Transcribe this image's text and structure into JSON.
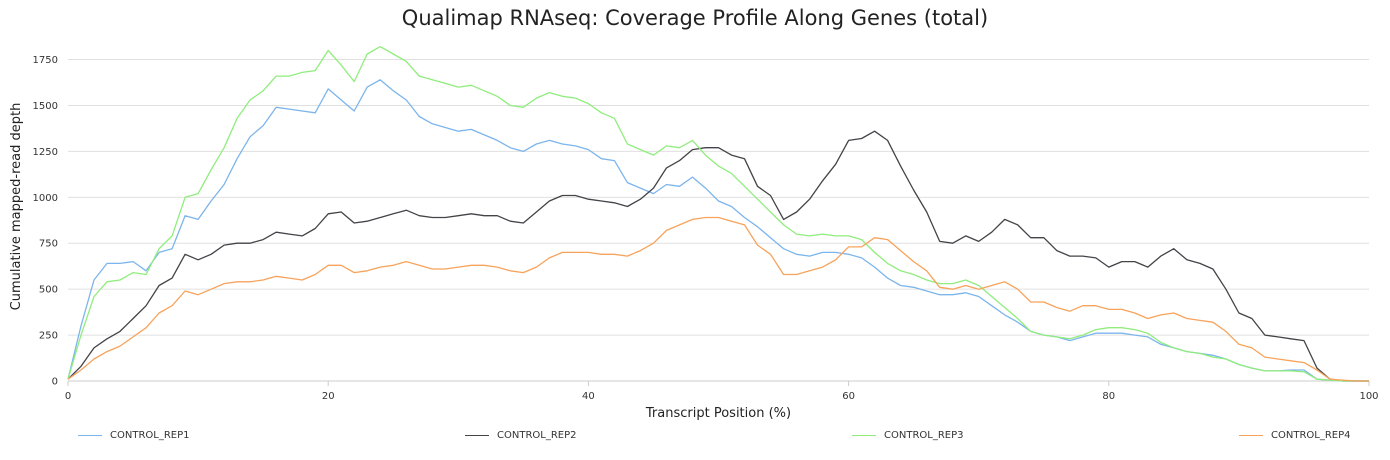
{
  "chart_data": {
    "type": "line",
    "title": "Qualimap RNAseq: Coverage Profile Along Genes (total)",
    "xlabel": "Transcript Position (%)",
    "ylabel": "Cumulative mapped-read depth",
    "xlim": [
      0,
      100
    ],
    "ylim": [
      0,
      1900
    ],
    "xticks": [
      0,
      20,
      40,
      60,
      80,
      100
    ],
    "yticks": [
      0,
      250,
      500,
      750,
      1000,
      1250,
      1500,
      1750
    ],
    "grid": "horizontal",
    "legend_position": "bottom",
    "x": [
      0,
      1,
      2,
      3,
      4,
      5,
      6,
      7,
      8,
      9,
      10,
      11,
      12,
      13,
      14,
      15,
      16,
      17,
      18,
      19,
      20,
      21,
      22,
      23,
      24,
      25,
      26,
      27,
      28,
      29,
      30,
      31,
      32,
      33,
      34,
      35,
      36,
      37,
      38,
      39,
      40,
      41,
      42,
      43,
      44,
      45,
      46,
      47,
      48,
      49,
      50,
      51,
      52,
      53,
      54,
      55,
      56,
      57,
      58,
      59,
      60,
      61,
      62,
      63,
      64,
      65,
      66,
      67,
      68,
      69,
      70,
      71,
      72,
      73,
      74,
      75,
      76,
      77,
      78,
      79,
      80,
      81,
      82,
      83,
      84,
      85,
      86,
      87,
      88,
      89,
      90,
      91,
      92,
      93,
      94,
      95,
      96,
      97,
      98,
      99,
      100
    ],
    "series": [
      {
        "name": "CONTROL_REP1",
        "color": "#7cb5ec",
        "values": [
          10,
          300,
          550,
          640,
          640,
          650,
          600,
          700,
          720,
          900,
          880,
          980,
          1070,
          1210,
          1330,
          1390,
          1490,
          1480,
          1470,
          1460,
          1590,
          1530,
          1470,
          1600,
          1640,
          1580,
          1530,
          1440,
          1400,
          1380,
          1360,
          1370,
          1340,
          1310,
          1270,
          1250,
          1290,
          1310,
          1290,
          1280,
          1260,
          1210,
          1200,
          1080,
          1050,
          1020,
          1070,
          1060,
          1110,
          1050,
          980,
          950,
          890,
          840,
          780,
          720,
          690,
          680,
          700,
          700,
          690,
          670,
          620,
          560,
          520,
          510,
          490,
          470,
          470,
          480,
          460,
          410,
          360,
          320,
          270,
          250,
          240,
          220,
          240,
          260,
          260,
          260,
          250,
          240,
          200,
          180,
          160,
          150,
          140,
          120,
          90,
          70,
          55,
          55,
          60,
          60,
          10,
          5,
          0,
          0,
          0
        ]
      },
      {
        "name": "CONTROL_REP2",
        "color": "#434348",
        "values": [
          10,
          80,
          180,
          230,
          270,
          340,
          410,
          520,
          560,
          690,
          660,
          690,
          740,
          750,
          750,
          770,
          810,
          800,
          790,
          830,
          910,
          920,
          860,
          870,
          890,
          910,
          930,
          900,
          890,
          890,
          900,
          910,
          900,
          900,
          870,
          860,
          920,
          980,
          1010,
          1010,
          990,
          980,
          970,
          950,
          990,
          1050,
          1160,
          1200,
          1260,
          1270,
          1270,
          1230,
          1210,
          1060,
          1010,
          880,
          920,
          990,
          1090,
          1180,
          1310,
          1320,
          1360,
          1310,
          1170,
          1040,
          920,
          760,
          750,
          790,
          760,
          810,
          880,
          850,
          780,
          780,
          710,
          680,
          680,
          670,
          620,
          650,
          650,
          620,
          680,
          720,
          660,
          640,
          610,
          500,
          370,
          340,
          250,
          240,
          230,
          220,
          70,
          10,
          0,
          0,
          0
        ]
      },
      {
        "name": "CONTROL_REP3",
        "color": "#90ed7d",
        "values": [
          10,
          250,
          460,
          540,
          550,
          590,
          580,
          720,
          790,
          1000,
          1020,
          1150,
          1270,
          1430,
          1530,
          1580,
          1660,
          1660,
          1680,
          1690,
          1800,
          1720,
          1630,
          1780,
          1820,
          1780,
          1740,
          1660,
          1640,
          1620,
          1600,
          1610,
          1580,
          1550,
          1500,
          1490,
          1540,
          1570,
          1550,
          1540,
          1510,
          1460,
          1430,
          1290,
          1260,
          1230,
          1280,
          1270,
          1310,
          1230,
          1170,
          1130,
          1060,
          990,
          920,
          850,
          800,
          790,
          800,
          790,
          790,
          770,
          700,
          640,
          600,
          580,
          550,
          530,
          530,
          550,
          520,
          460,
          400,
          340,
          270,
          250,
          240,
          230,
          250,
          280,
          290,
          290,
          280,
          260,
          210,
          180,
          160,
          150,
          130,
          120,
          90,
          70,
          55,
          55,
          55,
          50,
          10,
          5,
          0,
          0,
          0
        ]
      },
      {
        "name": "CONTROL_REP4",
        "color": "#f7a35c",
        "values": [
          10,
          60,
          120,
          160,
          190,
          240,
          290,
          370,
          410,
          490,
          470,
          500,
          530,
          540,
          540,
          550,
          570,
          560,
          550,
          580,
          630,
          630,
          590,
          600,
          620,
          630,
          650,
          630,
          610,
          610,
          620,
          630,
          630,
          620,
          600,
          590,
          620,
          670,
          700,
          700,
          700,
          690,
          690,
          680,
          710,
          750,
          820,
          850,
          880,
          890,
          890,
          870,
          850,
          740,
          690,
          580,
          580,
          600,
          620,
          660,
          730,
          730,
          780,
          770,
          710,
          650,
          600,
          510,
          500,
          520,
          500,
          520,
          540,
          500,
          430,
          430,
          400,
          380,
          410,
          410,
          390,
          390,
          370,
          340,
          360,
          370,
          340,
          330,
          320,
          270,
          200,
          180,
          130,
          120,
          110,
          100,
          60,
          10,
          5,
          0,
          0
        ]
      }
    ]
  }
}
